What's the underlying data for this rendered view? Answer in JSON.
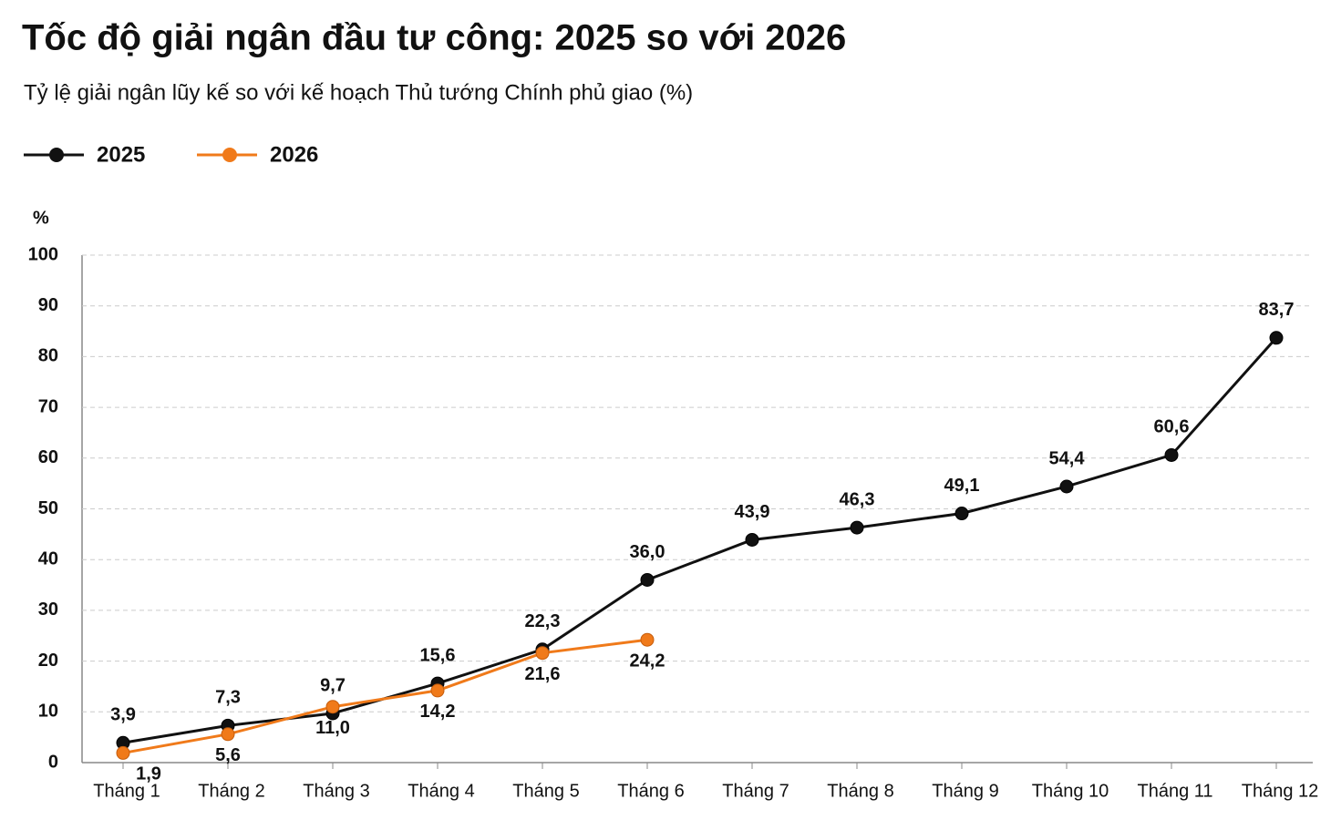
{
  "chart_data": {
    "type": "line",
    "title": "Tốc độ giải ngân đầu tư công: 2025 so với 2026",
    "subtitle": "Tỷ lệ giải ngân lũy kế so với kế hoạch Thủ tướng Chính phủ giao (%)",
    "y_axis_label": "%",
    "categories": [
      "Tháng 1",
      "Tháng 2",
      "Tháng 3",
      "Tháng 4",
      "Tháng 5",
      "Tháng 6",
      "Tháng 7",
      "Tháng 8",
      "Tháng 9",
      "Tháng 10",
      "Tháng 11",
      "Tháng 12"
    ],
    "series": [
      {
        "name": "2025",
        "color": "#111111",
        "values": [
          3.9,
          7.3,
          9.7,
          15.6,
          22.3,
          36.0,
          43.9,
          46.3,
          49.1,
          54.4,
          60.6,
          83.7
        ],
        "value_labels": [
          "3,9",
          "7,3",
          "9,7",
          "15,6",
          "22,3",
          "36,0",
          "43,9",
          "46,3",
          "49,1",
          "54,4",
          "60,6",
          "83,7"
        ]
      },
      {
        "name": "2026",
        "color": "#f07a1a",
        "values": [
          1.9,
          5.6,
          11.0,
          14.2,
          21.6,
          24.2,
          null,
          null,
          null,
          null,
          null,
          null
        ],
        "value_labels": [
          "1,9",
          "5,6",
          "11,0",
          "14,2",
          "21,6",
          "24,2",
          null,
          null,
          null,
          null,
          null,
          null
        ]
      }
    ],
    "ylim": [
      0,
      100
    ],
    "yticks": [
      0,
      10,
      20,
      30,
      40,
      50,
      60,
      70,
      80,
      90,
      100
    ],
    "grid": true,
    "legend": "top-left"
  }
}
